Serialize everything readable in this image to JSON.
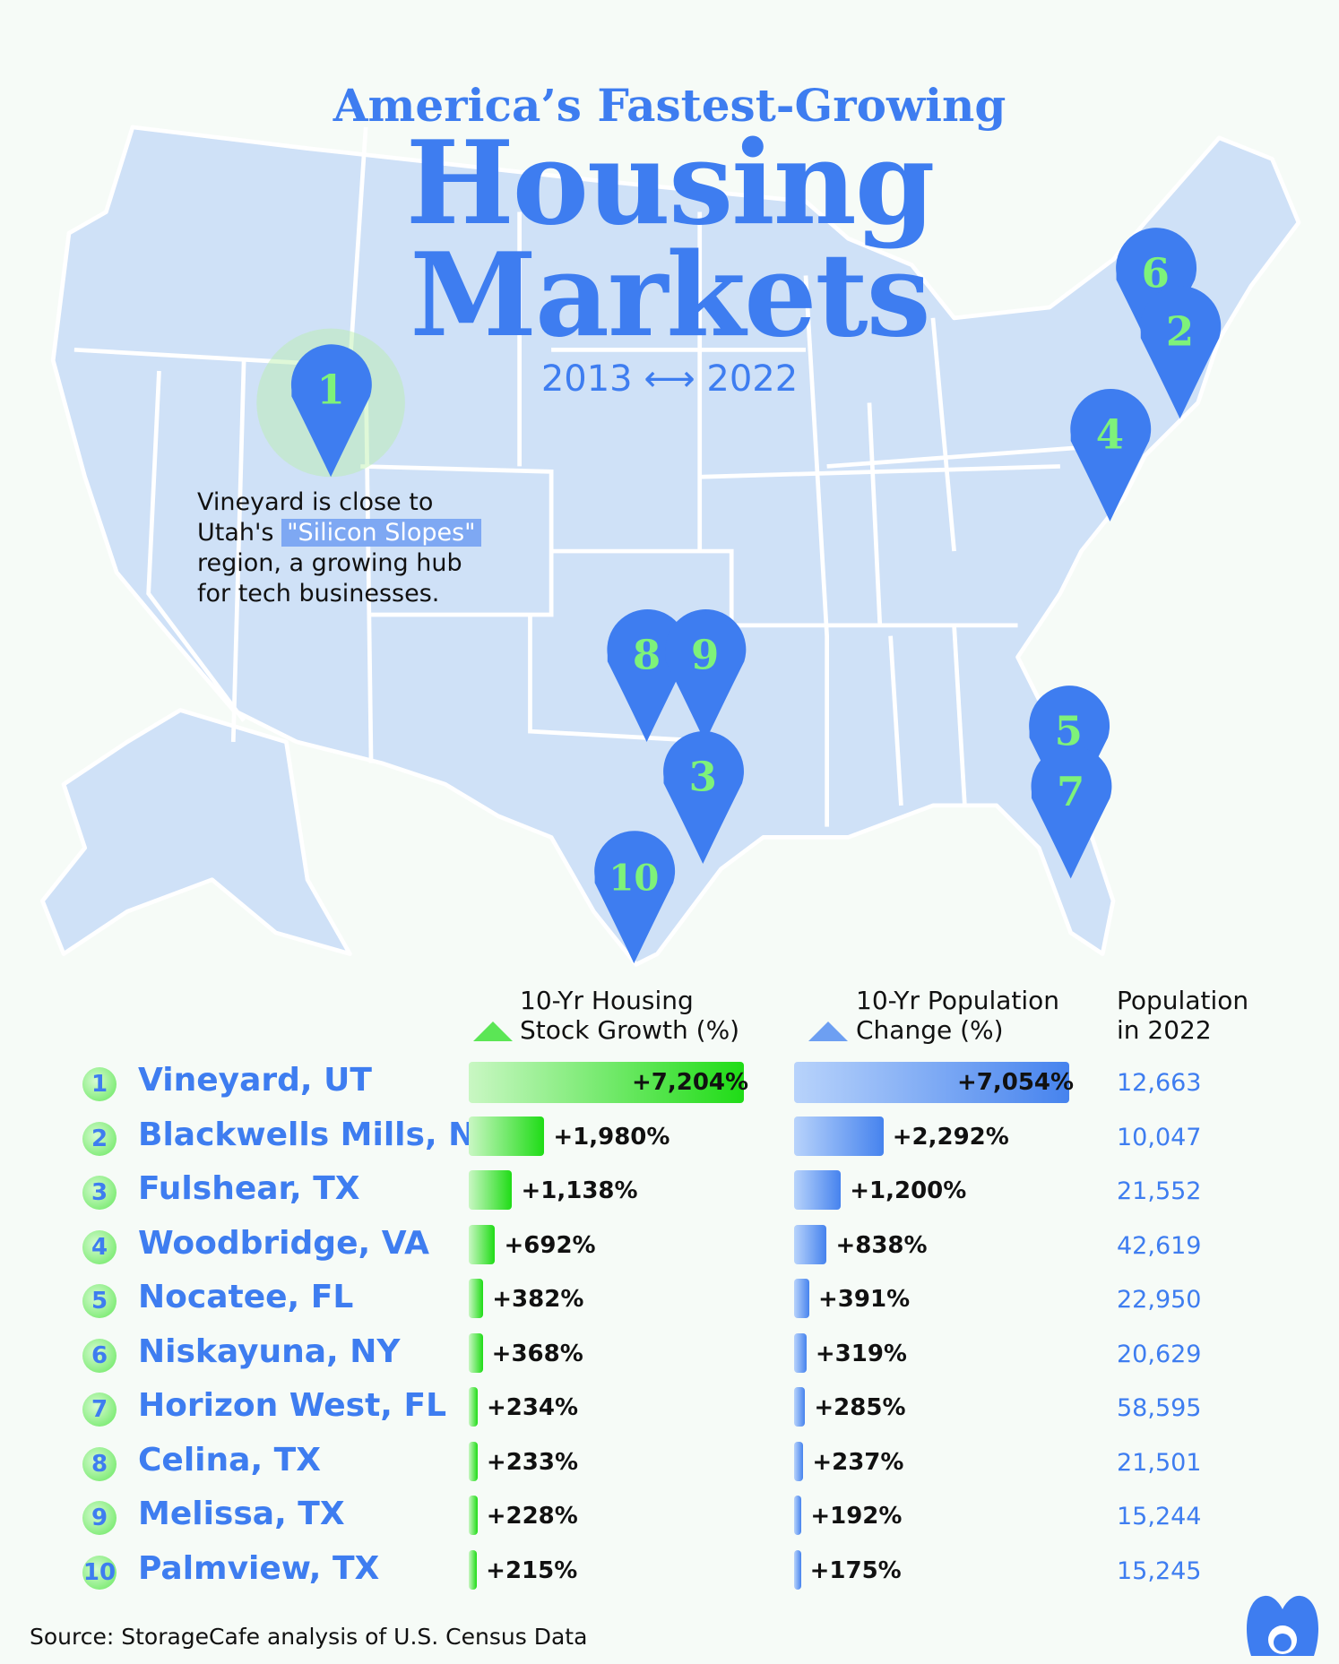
{
  "title": {
    "kicker": "America’s Fastest-Growing",
    "line1": "Housing",
    "line2": "Markets",
    "years": "2013 ⟷ 2022"
  },
  "annotation": {
    "before": "Vineyard is close to Utah's ",
    "highlight": "\"Silicon Slopes\"",
    "after": " region, a growing hub for tech businesses."
  },
  "colors": {
    "title": "#3e7df0",
    "housing_bar": "#1fdc16",
    "population_bar": "#4683ee",
    "map": "#cfe1f7",
    "pin": "#3e7df0",
    "pin_number": "#7ef27a"
  },
  "map_pins": [
    "1",
    "6",
    "2",
    "4",
    "8",
    "9",
    "3",
    "5",
    "7",
    "10"
  ],
  "chart_data": {
    "type": "table",
    "columns": [
      "",
      "10-Yr Housing Stock Growth (%)",
      "10-Yr Population Change (%)",
      "Population in 2022"
    ],
    "headers": {
      "housing": "10-Yr Housing Stock Growth (%)",
      "population_change": "10-Yr Population Change (%)",
      "population": "Population in 2022"
    },
    "rows": [
      {
        "rank": "1",
        "city": "Vineyard, UT",
        "housing_growth": 7204,
        "housing_label": "+7,204%",
        "pop_change": 7054,
        "pop_change_label": "+7,054%",
        "population": "12,663"
      },
      {
        "rank": "2",
        "city": "Blackwells Mills, NJ",
        "housing_growth": 1980,
        "housing_label": "+1,980%",
        "pop_change": 2292,
        "pop_change_label": "+2,292%",
        "population": "10,047"
      },
      {
        "rank": "3",
        "city": "Fulshear, TX",
        "housing_growth": 1138,
        "housing_label": "+1,138%",
        "pop_change": 1200,
        "pop_change_label": "+1,200%",
        "population": "21,552"
      },
      {
        "rank": "4",
        "city": "Woodbridge, VA",
        "housing_growth": 692,
        "housing_label": "+692%",
        "pop_change": 838,
        "pop_change_label": "+838%",
        "population": "42,619"
      },
      {
        "rank": "5",
        "city": "Nocatee, FL",
        "housing_growth": 382,
        "housing_label": "+382%",
        "pop_change": 391,
        "pop_change_label": "+391%",
        "population": "22,950"
      },
      {
        "rank": "6",
        "city": "Niskayuna, NY",
        "housing_growth": 368,
        "housing_label": "+368%",
        "pop_change": 319,
        "pop_change_label": "+319%",
        "population": "20,629"
      },
      {
        "rank": "7",
        "city": "Horizon West, FL",
        "housing_growth": 234,
        "housing_label": "+234%",
        "pop_change": 285,
        "pop_change_label": "+285%",
        "population": "58,595"
      },
      {
        "rank": "8",
        "city": "Celina, TX",
        "housing_growth": 233,
        "housing_label": "+233%",
        "pop_change": 237,
        "pop_change_label": "+237%",
        "population": "21,501"
      },
      {
        "rank": "9",
        "city": "Melissa, TX",
        "housing_growth": 228,
        "housing_label": "+228%",
        "pop_change": 192,
        "pop_change_label": "+192%",
        "population": "15,244"
      },
      {
        "rank": "10",
        "city": "Palmview, TX",
        "housing_growth": 215,
        "housing_label": "+215%",
        "pop_change": 175,
        "pop_change_label": "+175%",
        "population": "15,245"
      }
    ]
  },
  "source": "Source: StorageCafe analysis of U.S. Census Data"
}
